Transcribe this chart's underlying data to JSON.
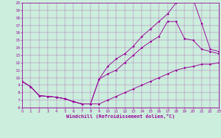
{
  "xlabel": "Windchill (Refroidissement éolien,°C)",
  "bg_color": "#cceedd",
  "line_color": "#990099",
  "xlim": [
    0,
    23
  ],
  "ylim": [
    6,
    20
  ],
  "xticks": [
    0,
    1,
    2,
    3,
    4,
    5,
    6,
    7,
    8,
    9,
    10,
    11,
    12,
    13,
    14,
    15,
    16,
    17,
    18,
    19,
    20,
    21,
    22,
    23
  ],
  "yticks": [
    6,
    7,
    8,
    9,
    10,
    11,
    12,
    13,
    14,
    15,
    16,
    17,
    18,
    19,
    20
  ],
  "line1_x": [
    0,
    1,
    2,
    3,
    4,
    5,
    6,
    7,
    8,
    9,
    10,
    11,
    12,
    13,
    14,
    15,
    16,
    17,
    18,
    19,
    20,
    21,
    22,
    23
  ],
  "line1_y": [
    9.5,
    8.8,
    7.6,
    7.5,
    7.4,
    7.2,
    6.8,
    6.5,
    6.5,
    6.5,
    7.0,
    7.5,
    8.0,
    8.5,
    9.0,
    9.5,
    10.0,
    10.5,
    11.0,
    11.3,
    11.5,
    11.8,
    11.8,
    12.0
  ],
  "line2_x": [
    0,
    1,
    2,
    3,
    4,
    5,
    6,
    7,
    8,
    9,
    10,
    11,
    12,
    13,
    14,
    15,
    16,
    17,
    18,
    19,
    20,
    21,
    22,
    23
  ],
  "line2_y": [
    9.5,
    8.8,
    7.6,
    7.5,
    7.4,
    7.2,
    6.8,
    6.5,
    6.5,
    9.8,
    10.5,
    11.0,
    12.0,
    13.0,
    14.0,
    14.8,
    15.5,
    17.5,
    17.5,
    15.2,
    15.0,
    13.8,
    13.5,
    13.2
  ],
  "line3_x": [
    0,
    1,
    2,
    3,
    4,
    5,
    6,
    7,
    8,
    9,
    10,
    11,
    12,
    13,
    14,
    15,
    16,
    17,
    18,
    19,
    20,
    21,
    22,
    23
  ],
  "line3_y": [
    9.5,
    8.8,
    7.6,
    7.5,
    7.4,
    7.2,
    6.8,
    6.5,
    6.5,
    9.8,
    11.5,
    12.5,
    13.2,
    14.2,
    15.5,
    16.5,
    17.5,
    18.5,
    20.0,
    20.2,
    20.5,
    17.2,
    13.8,
    13.5
  ]
}
